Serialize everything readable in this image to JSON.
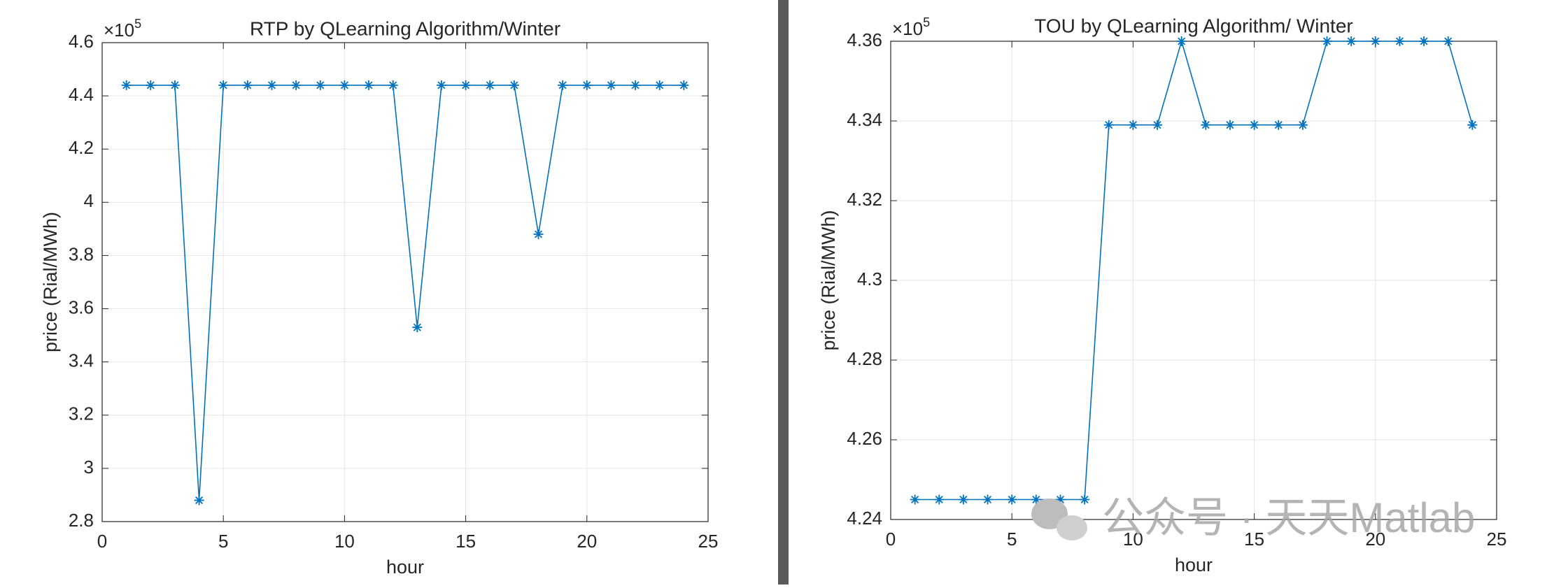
{
  "chart_data": [
    {
      "type": "line",
      "title": "RTP by QLearning Algorithm/Winter",
      "x_label": "hour",
      "y_label": "price (Rial/MWh)",
      "y_multiplier": {
        "base": "×10",
        "exponent": "5"
      },
      "x": [
        1,
        2,
        3,
        4,
        5,
        6,
        7,
        8,
        9,
        10,
        11,
        12,
        13,
        14,
        15,
        16,
        17,
        18,
        19,
        20,
        21,
        22,
        23,
        24
      ],
      "series": [
        {
          "name": "RTP",
          "color": "#0072bd",
          "values": [
            4.44,
            4.44,
            4.44,
            2.88,
            4.44,
            4.44,
            4.44,
            4.44,
            4.44,
            4.44,
            4.44,
            4.44,
            3.53,
            4.44,
            4.44,
            4.44,
            4.44,
            3.88,
            4.44,
            4.44,
            4.44,
            4.44,
            4.44,
            4.44
          ]
        }
      ],
      "xlim": [
        0,
        25
      ],
      "xticks": [
        0,
        5,
        10,
        15,
        20,
        25
      ],
      "ylim": [
        2.8,
        4.6
      ],
      "yticks": [
        2.8,
        3,
        3.2,
        3.4,
        3.6,
        3.8,
        4,
        4.2,
        4.4,
        4.6
      ],
      "grid": true
    },
    {
      "type": "line",
      "title": "TOU by QLearning Algorithm/ Winter",
      "x_label": "hour",
      "y_label": "price (Rial/MWh)",
      "y_multiplier": {
        "base": "×10",
        "exponent": "5"
      },
      "x": [
        1,
        2,
        3,
        4,
        5,
        6,
        7,
        8,
        9,
        10,
        11,
        12,
        13,
        14,
        15,
        16,
        17,
        18,
        19,
        20,
        21,
        22,
        23,
        24
      ],
      "series": [
        {
          "name": "TOU",
          "color": "#0072bd",
          "values": [
            4.245,
            4.245,
            4.245,
            4.245,
            4.245,
            4.245,
            4.245,
            4.245,
            4.339,
            4.339,
            4.339,
            4.36,
            4.339,
            4.339,
            4.339,
            4.339,
            4.339,
            4.36,
            4.36,
            4.36,
            4.36,
            4.36,
            4.36,
            4.339
          ]
        }
      ],
      "xlim": [
        0,
        25
      ],
      "xticks": [
        0,
        5,
        10,
        15,
        20,
        25
      ],
      "ylim": [
        4.24,
        4.36
      ],
      "yticks": [
        4.24,
        4.26,
        4.28,
        4.3,
        4.32,
        4.34,
        4.36
      ],
      "grid": true
    }
  ],
  "watermark": "公众号 · 天天Matlab"
}
